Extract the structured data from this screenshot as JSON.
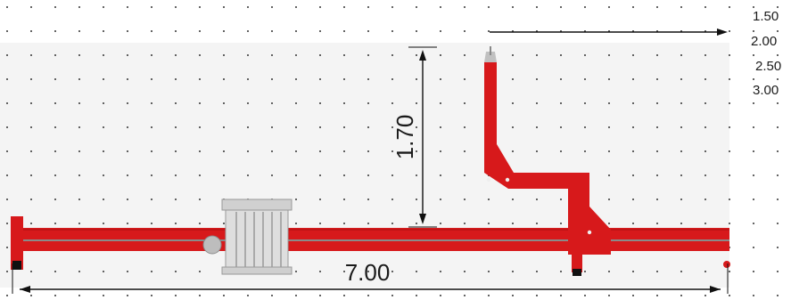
{
  "drawing": {
    "dimension_length": "7.00",
    "dimension_height": "1.70",
    "scale_labels": [
      "1.50",
      "2.00",
      "2.50",
      "3.00"
    ]
  },
  "colors": {
    "structure_red": "#d7191b",
    "structure_dark": "#a80f10",
    "cassette_grey": "#c9c9c9",
    "panel_background": "#f4f4f4",
    "grid_dot": "#333333",
    "dimension_line": "#111111"
  }
}
